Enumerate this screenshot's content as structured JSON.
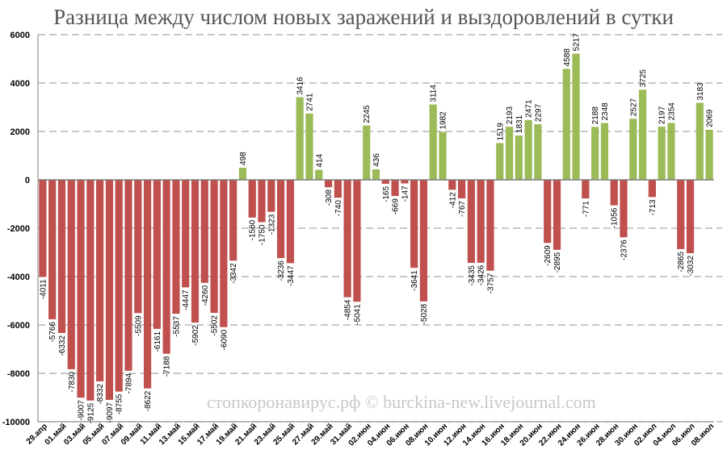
{
  "chart_data": {
    "type": "bar",
    "title": "Разница между числом новых заражений и выздоровлений в сутки",
    "watermark": "стопкоронавирус.рф © burckina-new.livejournal.com",
    "ylim": [
      -10000,
      6000
    ],
    "yticks": [
      "-10000",
      "-8000",
      "-6000",
      "-4000",
      "-2000",
      "0",
      "2000",
      "4000",
      "6000"
    ],
    "grid": true,
    "legend": "none",
    "colors": {
      "positive": "#9bbb59",
      "negative": "#c0504d",
      "grid": "#a6a6a6",
      "axis": "#7f7f7f",
      "text": "#000000"
    },
    "xtick_labels": [
      "29.апр",
      "01.май",
      "03.май",
      "05.май",
      "07.май",
      "09.май",
      "11.май",
      "13.май",
      "15.май",
      "17.май",
      "19.май",
      "21.май",
      "23.май",
      "25.май",
      "27.май",
      "29.май",
      "31.май",
      "02.июн",
      "04.июн",
      "06.июн",
      "08.июн",
      "10.июн",
      "12.июн",
      "14.июн",
      "16.июн",
      "18.июн",
      "20.июн",
      "22.июн",
      "24.июн",
      "26.июн",
      "28.июн",
      "30.июн",
      "02.июл",
      "04.июл",
      "06.июл",
      "08.июл"
    ],
    "values": [
      -4011,
      -5766,
      -6332,
      -7830,
      -9007,
      -9125,
      -8332,
      -9097,
      -8755,
      -7894,
      -5509,
      -8622,
      -6161,
      -7188,
      -5537,
      -4447,
      -5902,
      -4260,
      -5502,
      -6090,
      -3342,
      498,
      -1560,
      -1750,
      -1323,
      -3236,
      -3447,
      3416,
      2741,
      414,
      -308,
      -740,
      -4854,
      -5041,
      2245,
      436,
      -165,
      -669,
      -147,
      -3641,
      -5028,
      3114,
      1982,
      -412,
      -767,
      -3435,
      -3426,
      -3757,
      1519,
      2193,
      1831,
      2471,
      2297,
      -2609,
      -2895,
      4588,
      5217,
      -771,
      2188,
      2348,
      -1056,
      -2376,
      2527,
      3725,
      -713,
      2197,
      2354,
      -2865,
      -3032,
      3183,
      2069
    ],
    "value_labels": [
      "-4011",
      "-5766",
      "-6332",
      "-7830",
      "-9007",
      "-9125",
      "-8332",
      "-9097",
      "-8755",
      "-7894",
      "-5509",
      "-8622",
      "-6161",
      "-7188",
      "-5537",
      "-4447",
      "-5902",
      "-4260",
      "-5502",
      "-6090",
      "-3342",
      "498",
      "-1560",
      "-1750",
      "-1323",
      "-3236",
      "-3447",
      "3416",
      "2741",
      "414",
      "-308",
      "-740",
      "-4854",
      "-5041",
      "2245",
      "436",
      "-165",
      "-669",
      "-147",
      "-3641",
      "-5028",
      "3114",
      "1982",
      "-412",
      "-767",
      "-3435",
      "-3426",
      "-3757",
      "1519",
      "2193",
      "1831",
      "2471",
      "2297",
      "-2609",
      "-2895",
      "4588",
      "5217",
      "-771",
      "2188",
      "2348",
      "-1056",
      "-2376",
      "2527",
      "3725",
      "-713",
      "2197",
      "2354",
      "-2865",
      "-3032",
      "3183",
      "2069"
    ]
  }
}
